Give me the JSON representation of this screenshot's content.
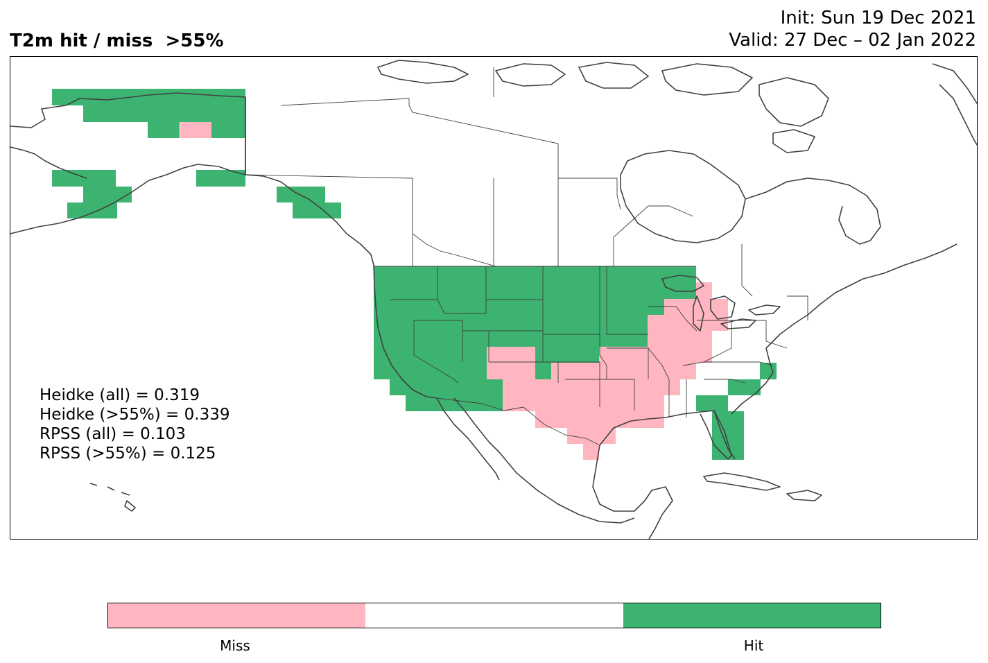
{
  "header": {
    "title": "T2m hit / miss  >55%",
    "init": "Init: Sun 19 Dec 2021",
    "valid": "Valid: 27 Dec – 02 Jan 2022"
  },
  "scores": {
    "heidke_all": "Heidke (all) = 0.319",
    "heidke_55": "Heidke (>55%) = 0.339",
    "rpss_all": "RPSS (all) = 0.103",
    "rpss_55": "RPSS (>55%) = 0.125"
  },
  "legend": {
    "miss_label": "Miss",
    "hit_label": "Hit",
    "colors": {
      "miss": "#ffb6c1",
      "neutral": "#ffffff",
      "hit": "#3cb371"
    }
  },
  "map": {
    "description_colors": {
      "coast": "#404040",
      "border": "#404040"
    }
  }
}
